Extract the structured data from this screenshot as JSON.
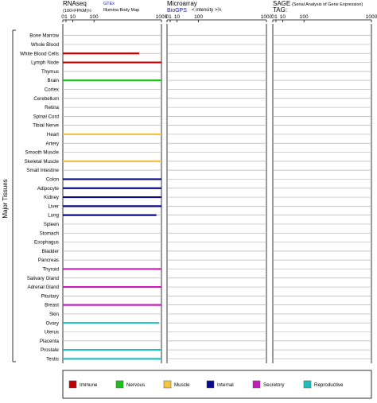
{
  "panels": {
    "rnaseq": {
      "title": "RNAseq",
      "subtitle": "(100×FPKM)½",
      "source_primary": "GTEx",
      "source_secondary": "Illumina Body Map"
    },
    "microarray": {
      "title": "Microarray",
      "source": "BioGPS",
      "subtitle": "< intensity >⅔"
    },
    "sage": {
      "title": "SAGE",
      "subtitle": "(Serial Analysis of Gene Expression)",
      "tag_label": "TAG:"
    }
  },
  "colors": {
    "immune": "#c00000",
    "nervous": "#1fbf1f",
    "muscle": "#f5c242",
    "internal": "#0a0a8c",
    "secretory": "#c21fb8",
    "reproductive": "#22bcbc",
    "source_link": "#1a1a9c",
    "grid": "#b3b3b3"
  },
  "chart_data": {
    "type": "bar",
    "ylabel": "Major Tissues",
    "x_scale": "sqrt",
    "xlim": [
      0,
      1000
    ],
    "x_ticks": [
      "0",
      "1",
      "10",
      "100",
      "1000"
    ],
    "x_tick_values": [
      0,
      1,
      10,
      100,
      1000
    ],
    "categories": [
      "Bone Marrow",
      "Whole Blood",
      "White Blood Cells",
      "Lymph Node",
      "Thymus",
      "Brain",
      "Cortex",
      "Cerebellum",
      "Retina",
      "Spinal Cord",
      "Tibial Nerve",
      "Heart",
      "Artery",
      "Smooth Muscle",
      "Skeletal Muscle",
      "Small Intestine",
      "Colon",
      "Adipocyte",
      "Kidney",
      "Liver",
      "Lung",
      "Spleen",
      "Stomach",
      "Esophagus",
      "Bladder",
      "Pancreas",
      "Thyroid",
      "Salivary Gland",
      "Adrenal Gland",
      "Pituitary",
      "Breast",
      "Skin",
      "Ovary",
      "Uterus",
      "Placenta",
      "Prostate",
      "Testis"
    ],
    "systems": [
      "immune",
      "immune",
      "immune",
      "immune",
      "immune",
      "nervous",
      "nervous",
      "nervous",
      "nervous",
      "nervous",
      "nervous",
      "muscle",
      "muscle",
      "muscle",
      "muscle",
      "internal",
      "internal",
      "internal",
      "internal",
      "internal",
      "internal",
      "internal",
      "internal",
      "internal",
      "internal",
      "internal",
      "secretory",
      "secretory",
      "secretory",
      "secretory",
      "secretory",
      "secretory",
      "reproductive",
      "reproductive",
      "reproductive",
      "reproductive",
      "reproductive"
    ],
    "series": [
      {
        "name": "RNAseq",
        "values": [
          0,
          0,
          600,
          1000,
          0,
          1000,
          0,
          0,
          0,
          0,
          0,
          1000,
          0,
          0,
          1000,
          0,
          1000,
          1000,
          1000,
          1000,
          900,
          0,
          0,
          0,
          0,
          0,
          1000,
          0,
          1000,
          0,
          1000,
          0,
          950,
          0,
          0,
          1000,
          1000
        ]
      },
      {
        "name": "Microarray",
        "values": [
          0,
          0,
          0,
          0,
          0,
          0,
          0,
          0,
          0,
          0,
          0,
          0,
          0,
          0,
          0,
          0,
          0,
          0,
          0,
          0,
          0,
          0,
          0,
          0,
          0,
          0,
          0,
          0,
          0,
          0,
          0,
          0,
          0,
          0,
          0,
          0,
          0
        ]
      },
      {
        "name": "SAGE",
        "values": [
          0,
          0,
          0,
          0,
          0,
          0,
          0,
          0,
          0,
          0,
          0,
          0,
          0,
          0,
          0,
          0,
          0,
          0,
          0,
          0,
          0,
          0,
          0,
          0,
          0,
          0,
          0,
          0,
          0,
          0,
          0,
          0,
          0,
          0,
          0,
          0,
          0
        ]
      }
    ],
    "legend": [
      {
        "key": "immune",
        "label": "Immune"
      },
      {
        "key": "nervous",
        "label": "Nervous"
      },
      {
        "key": "muscle",
        "label": "Muscle"
      },
      {
        "key": "internal",
        "label": "Internal"
      },
      {
        "key": "secretory",
        "label": "Secretory"
      },
      {
        "key": "reproductive",
        "label": "Reproductive"
      }
    ],
    "legend_position": "bottom"
  }
}
